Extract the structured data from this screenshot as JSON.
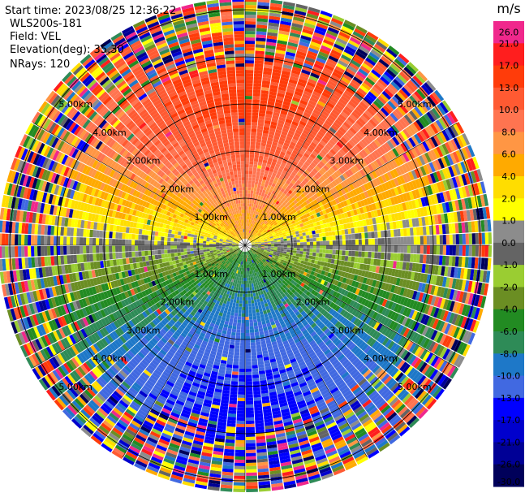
{
  "header": {
    "start_time": "Start time: 2023/08/25 12:36:22",
    "instrument": "WLS200s-181",
    "field": "Field: VEL",
    "elevation": "Elevation(deg): 35.30",
    "nrays": "NRays: 120"
  },
  "chart_data": {
    "type": "polar-ppi",
    "field": "VEL",
    "units": "m/s",
    "n_rays": 120,
    "elevation_deg": 35.3,
    "range_rings_km": [
      1,
      2,
      3,
      4,
      5
    ],
    "ring_labels": [
      "1.00km",
      "2.00km",
      "3.00km",
      "4.00km",
      "5.00km"
    ],
    "max_range_km": 5.2,
    "colorbar": {
      "title": "m/s",
      "ticks": [
        "26.0",
        "21.0",
        "17.0",
        "13.0",
        "10.0",
        "8.0",
        "6.0",
        "4.0",
        "2.0",
        "1.0",
        "0.0",
        "-1.0",
        "-2.0",
        "-4.0",
        "-6.0",
        "-8.0",
        "-10.0",
        "-13.0",
        "-17.0",
        "-21.0",
        "-26.0",
        "-30.0"
      ],
      "colors": [
        "#f0288c",
        "#ff1e1e",
        "#ff3c0a",
        "#ff5a32",
        "#ff7450",
        "#ff9644",
        "#ffaa00",
        "#ffdd00",
        "#ffff00",
        "#8c8c8c",
        "#646464",
        "#9acd32",
        "#6b8e23",
        "#228b22",
        "#2e8b57",
        "#1e78c8",
        "#4169e1",
        "#0000ff",
        "#0000cd",
        "#000096",
        "#00005a"
      ]
    },
    "structure": {
      "inner_coherent_km": 3.7,
      "transition_km": 4.5,
      "outer_noisy_km": 5.2,
      "toward_sector": "north (positive velocities, warm colors)",
      "away_sector": "south (negative velocities, cool colors)",
      "zero_line": "east-west"
    }
  }
}
